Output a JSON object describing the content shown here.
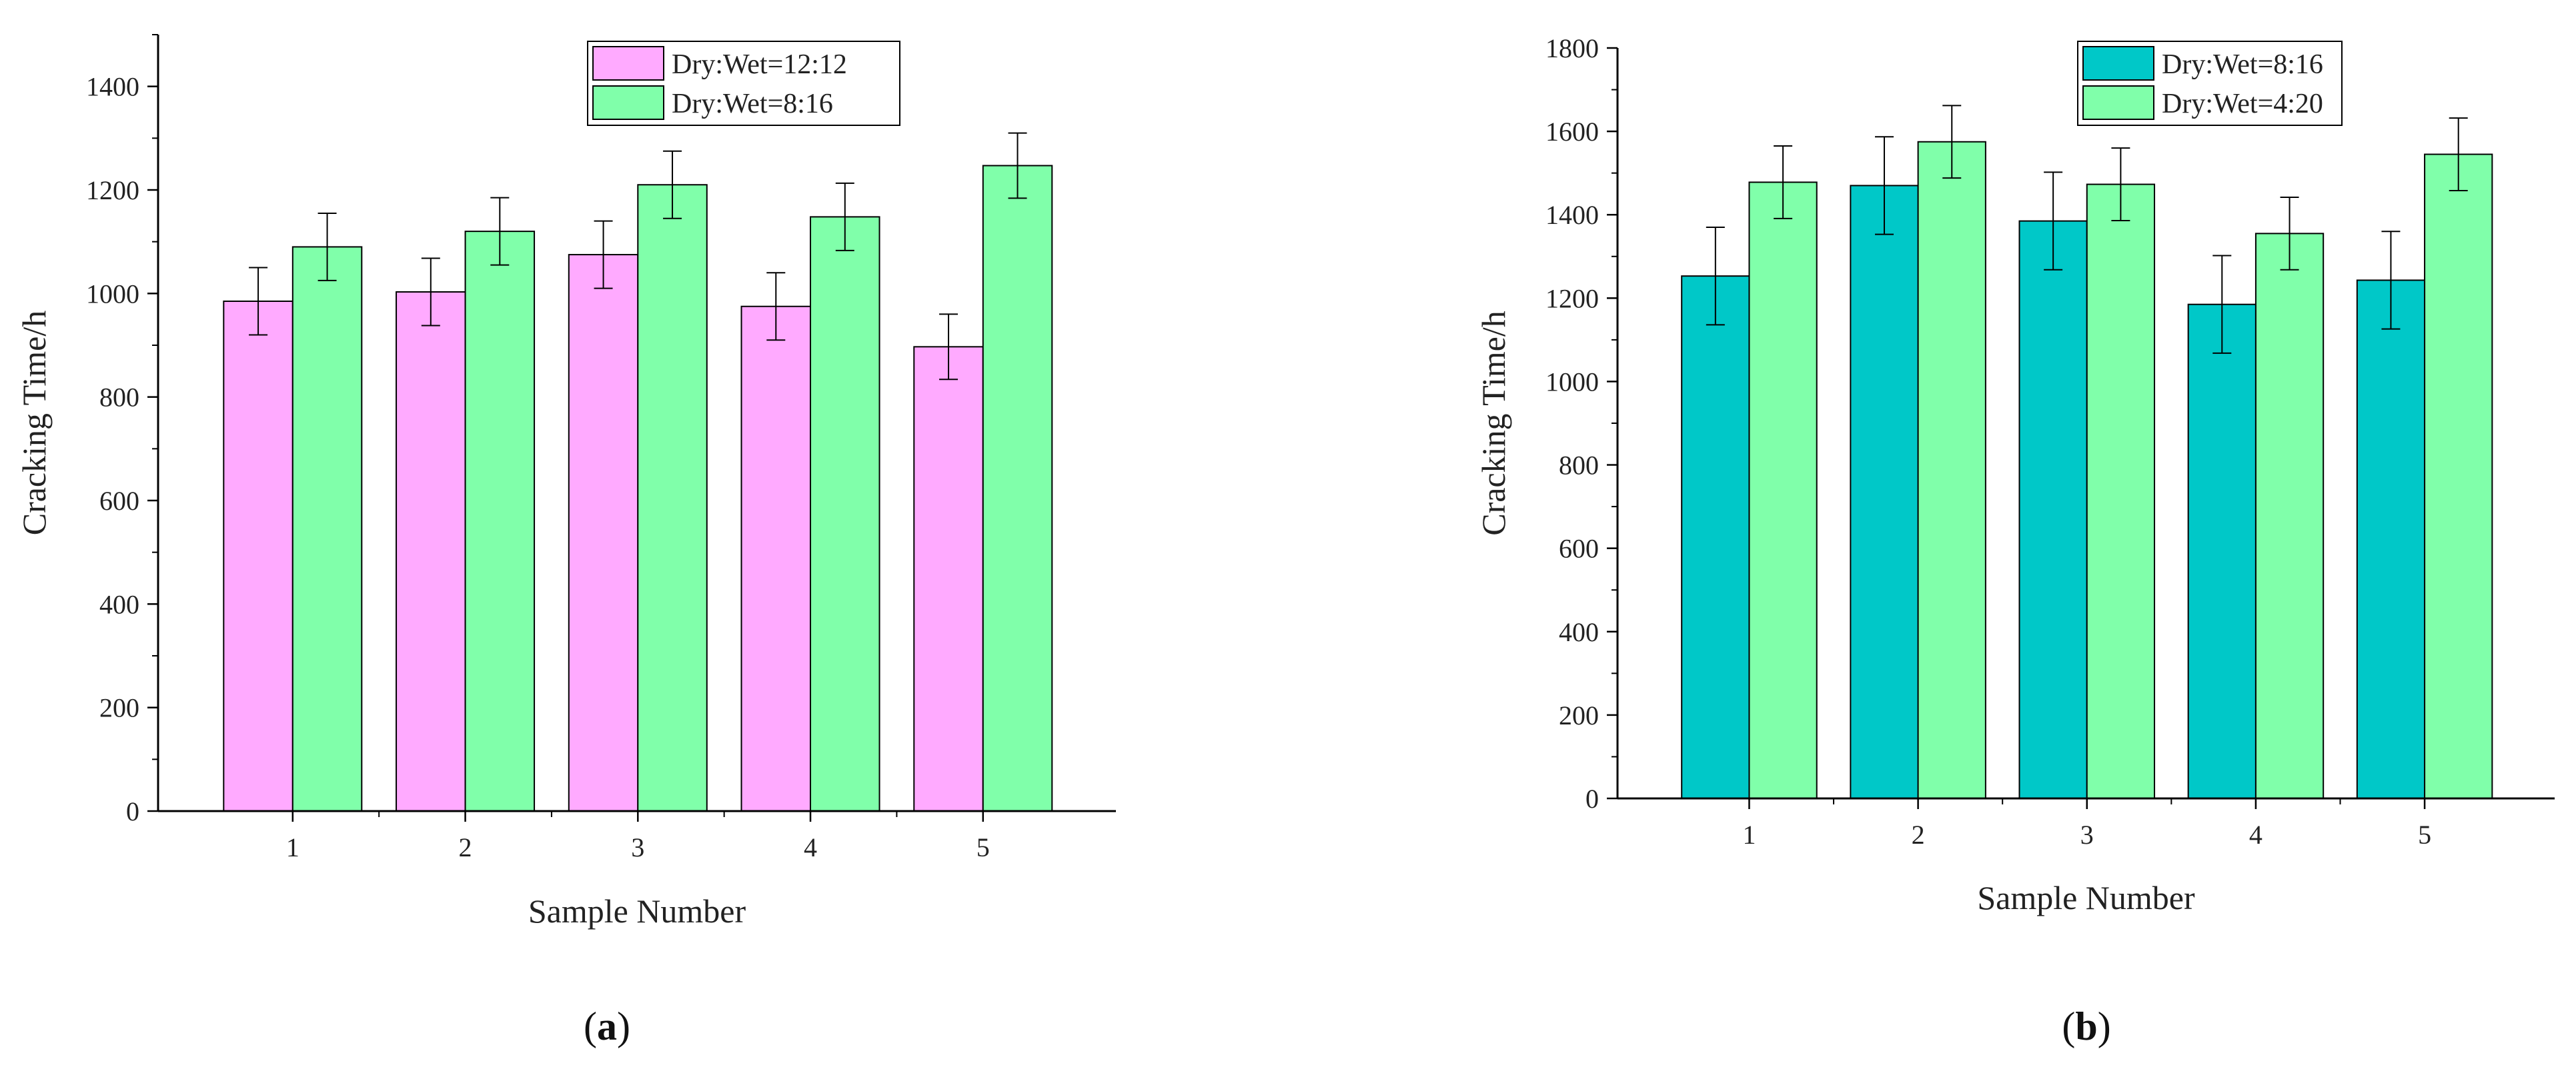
{
  "chart_data": [
    {
      "type": "bar",
      "panel_label": "a",
      "title": "",
      "xlabel": "Sample Number",
      "ylabel": "Cracking Time/h",
      "categories": [
        "1",
        "2",
        "3",
        "4",
        "5"
      ],
      "ylim": [
        0,
        1500
      ],
      "yticks": [
        0,
        200,
        400,
        600,
        800,
        1000,
        1200,
        1400
      ],
      "grid": false,
      "legend_position": "top-right",
      "series": [
        {
          "name": "Dry:Wet=12:12",
          "color": "#FFAAFF",
          "values": [
            985,
            1003,
            1075,
            975,
            897
          ],
          "errors": [
            65,
            65,
            65,
            65,
            63
          ]
        },
        {
          "name": "Dry:Wet=8:16",
          "color": "#80FFAA",
          "values": [
            1090,
            1120,
            1210,
            1148,
            1247
          ],
          "errors": [
            65,
            65,
            65,
            65,
            63
          ]
        }
      ]
    },
    {
      "type": "bar",
      "panel_label": "b",
      "title": "",
      "xlabel": "Sample Number",
      "ylabel": "Cracking Time/h",
      "categories": [
        "1",
        "2",
        "3",
        "4",
        "5"
      ],
      "ylim": [
        0,
        1800
      ],
      "yticks": [
        0,
        200,
        400,
        600,
        800,
        1000,
        1200,
        1400,
        1600,
        1800
      ],
      "grid": false,
      "legend_position": "top-right",
      "series": [
        {
          "name": "Dry:Wet=8:16",
          "color": "#00C8C8",
          "values": [
            1253,
            1470,
            1385,
            1185,
            1243
          ],
          "errors": [
            117,
            117,
            117,
            117,
            117
          ]
        },
        {
          "name": "Dry:Wet=4:20",
          "color": "#80FFAA",
          "values": [
            1478,
            1575,
            1473,
            1355,
            1545
          ],
          "errors": [
            87,
            87,
            87,
            87,
            87
          ]
        }
      ]
    }
  ]
}
